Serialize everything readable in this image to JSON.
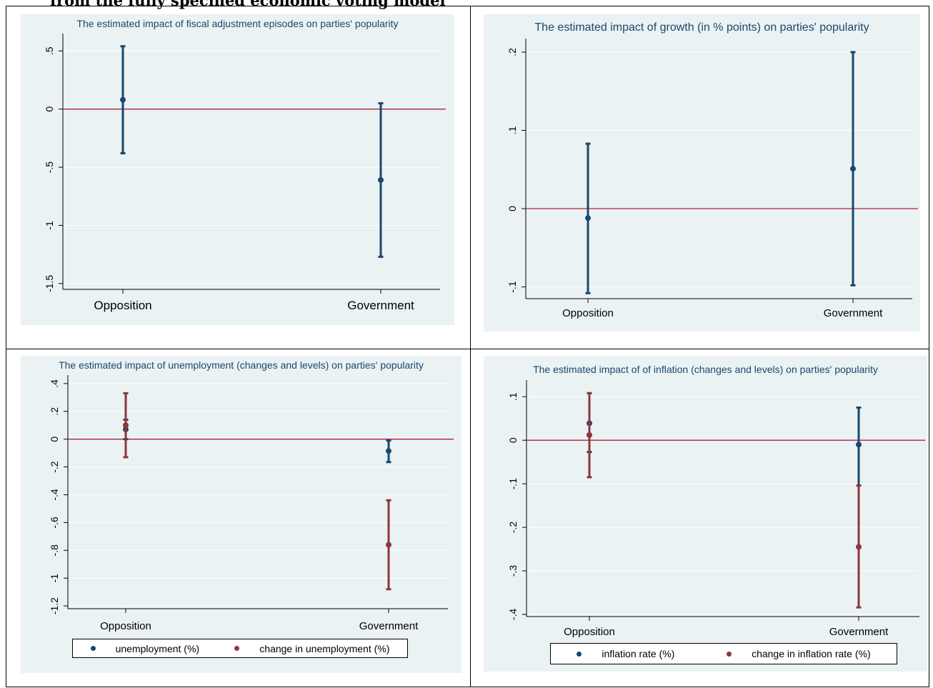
{
  "caption": "from the fully specified economic voting model",
  "colors": {
    "navy": "#1a476f",
    "maroon": "#90353b",
    "zero_line": "#b0203a",
    "panel_bg": "#eaf2f3",
    "grid": "#ffffff"
  },
  "chart_data": [
    {
      "type": "errorbar",
      "title": "The estimated impact of fiscal adjustment episodes on parties' popularity",
      "categories": [
        "Opposition",
        "Government"
      ],
      "ylim": [
        -1.55,
        0.6
      ],
      "yticks": [
        0.5,
        0,
        -0.5,
        -1,
        -1.5
      ],
      "ytick_labels": [
        ".5",
        "0",
        "-.5",
        "-1",
        "-1.5"
      ],
      "zero_line": 0,
      "series": [
        {
          "color": "#1a476f",
          "points": [
            {
              "est": 0.08,
              "lo": -0.38,
              "hi": 0.54
            },
            {
              "est": -0.61,
              "lo": -1.27,
              "hi": 0.05
            }
          ]
        }
      ]
    },
    {
      "type": "errorbar",
      "title": "The estimated impact of growth (in % points) on parties' popularity",
      "categories": [
        "Opposition",
        "Government"
      ],
      "ylim": [
        -0.115,
        0.21
      ],
      "yticks": [
        0.2,
        0.1,
        0,
        -0.1
      ],
      "ytick_labels": [
        ".2",
        ".1",
        "0",
        "-.1"
      ],
      "zero_line": 0,
      "series": [
        {
          "color": "#1a476f",
          "points": [
            {
              "est": -0.012,
              "lo": -0.108,
              "hi": 0.083
            },
            {
              "est": 0.051,
              "lo": -0.098,
              "hi": 0.2
            }
          ]
        }
      ]
    },
    {
      "type": "errorbar",
      "title": "The estimated impact of unemployment (changes and levels) on parties' popularity",
      "categories": [
        "Opposition",
        "Government"
      ],
      "ylim": [
        -1.22,
        0.42
      ],
      "yticks": [
        0.4,
        0.2,
        0,
        -0.2,
        -0.4,
        -0.6,
        -0.8,
        -1,
        -1.2
      ],
      "ytick_labels": [
        ".4",
        ".2",
        "0",
        "-.2",
        "-.4",
        "-.6",
        "-.8",
        "-1",
        "-1.2"
      ],
      "zero_line": 0,
      "series": [
        {
          "name": "unemployment (%)",
          "color": "#1a476f",
          "points": [
            {
              "est": 0.07,
              "lo": 0.0,
              "hi": 0.14
            },
            {
              "est": -0.085,
              "lo": -0.165,
              "hi": -0.01
            }
          ]
        },
        {
          "name": "change in unemployment (%)",
          "color": "#90353b",
          "points": [
            {
              "est": 0.1,
              "lo": -0.13,
              "hi": 0.33
            },
            {
              "est": -0.76,
              "lo": -1.08,
              "hi": -0.44
            }
          ]
        }
      ]
    },
    {
      "type": "errorbar",
      "title": "The estimated impact of of inflation (changes and levels) on parties' popularity",
      "categories": [
        "Opposition",
        "Government"
      ],
      "ylim": [
        -0.405,
        0.125
      ],
      "yticks": [
        0.1,
        0,
        -0.1,
        -0.2,
        -0.3,
        -0.4
      ],
      "ytick_labels": [
        ".1",
        "0",
        "-.1",
        "-.2",
        "-.3",
        "-.4"
      ],
      "zero_line": 0,
      "series": [
        {
          "name": "inflation rate (%)",
          "color": "#1a476f",
          "points": [
            {
              "est": 0.039,
              "lo": -0.027,
              "hi": 0.108
            },
            {
              "est": -0.01,
              "lo": -0.104,
              "hi": 0.075
            }
          ]
        },
        {
          "name": "change in inflation rate (%)",
          "color": "#90353b",
          "points": [
            {
              "est": 0.012,
              "lo": -0.085,
              "hi": 0.108
            },
            {
              "est": -0.245,
              "lo": -0.384,
              "hi": -0.104
            }
          ]
        }
      ]
    }
  ]
}
